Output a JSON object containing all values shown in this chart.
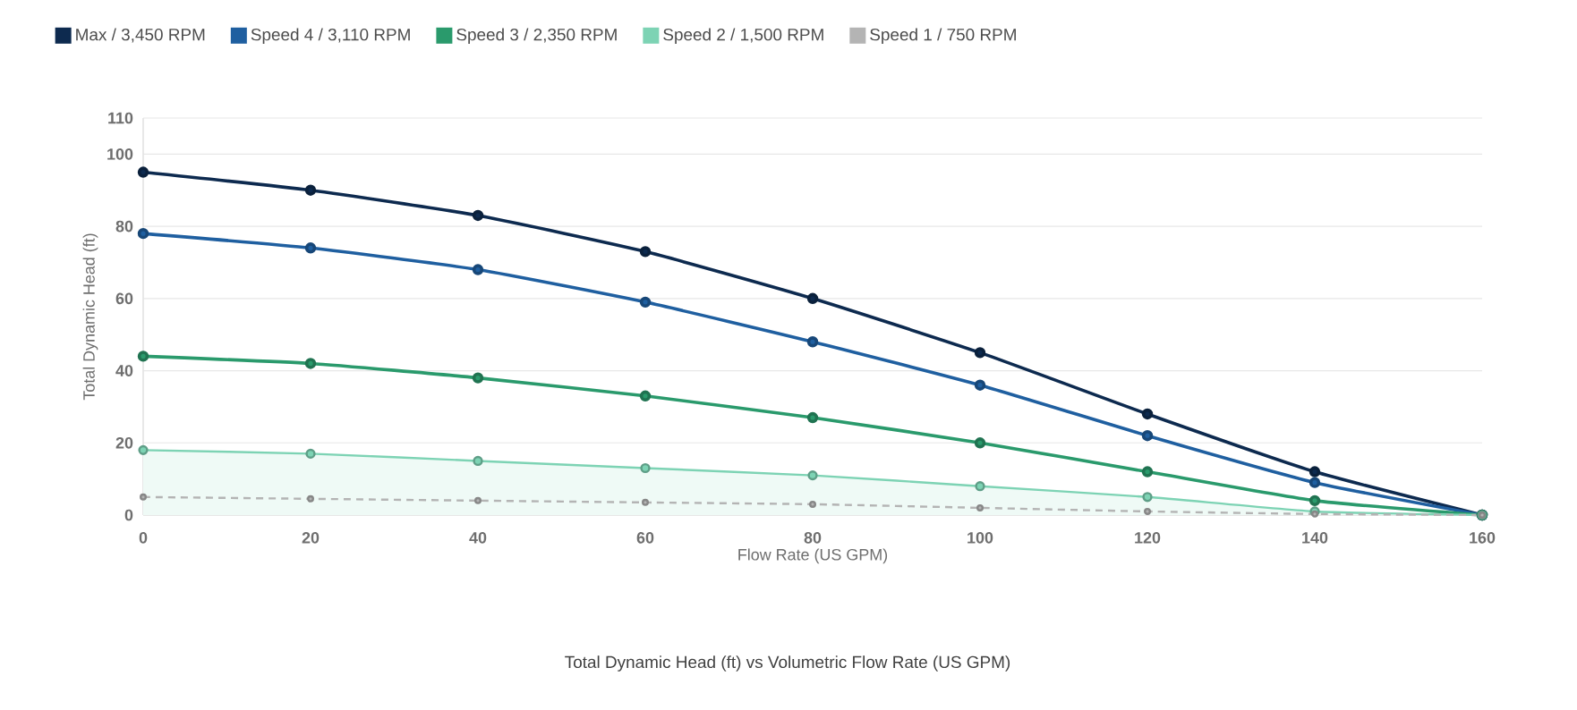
{
  "chart_data": {
    "type": "line",
    "title": "Total Dynamic Head (ft) vs Volumetric Flow Rate (US GPM)",
    "xlabel": "Flow Rate (US GPM)",
    "ylabel": "Total Dynamic Head (ft)",
    "x": [
      0,
      20,
      40,
      60,
      80,
      100,
      120,
      140,
      160
    ],
    "series": [
      {
        "name": "Max / 3,450 RPM",
        "color": "#0d2a4f",
        "values": [
          95,
          90,
          83,
          73,
          60,
          45,
          28,
          12,
          0
        ]
      },
      {
        "name": "Speed 4 / 3,110 RPM",
        "color": "#1f5fa0",
        "values": [
          78,
          74,
          68,
          59,
          48,
          36,
          22,
          9,
          0
        ]
      },
      {
        "name": "Speed 3 / 2,350 RPM",
        "color": "#2a9a6c",
        "values": [
          44,
          42,
          38,
          33,
          27,
          20,
          12,
          4,
          0
        ]
      },
      {
        "name": "Speed 2 / 1,500 RPM",
        "color": "#7dd3b4",
        "type": "area",
        "values": [
          18,
          17,
          15,
          13,
          11,
          8,
          5,
          1,
          0
        ]
      },
      {
        "name": "Speed 1 / 750 RPM",
        "color": "#b4b4b4",
        "line_style": "dashed",
        "values": [
          5,
          4.5,
          4,
          3.5,
          3,
          2,
          1,
          0.3,
          0
        ]
      }
    ],
    "xlim": [
      0,
      160
    ],
    "xticks": [
      0,
      20,
      40,
      60,
      80,
      100,
      120,
      140,
      160
    ],
    "ylim": [
      0,
      110
    ],
    "yticks": [
      0,
      20,
      40,
      60,
      80,
      100,
      110
    ],
    "grid": "y",
    "legend": "top left",
    "marker": "circle"
  }
}
